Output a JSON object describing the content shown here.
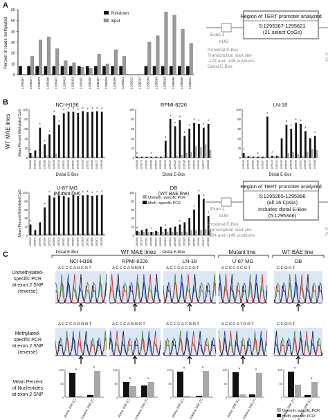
{
  "panels": {
    "A": {
      "letter": "A",
      "legend": [
        "Pull-down",
        "Input"
      ],
      "ylabel": "Percent of reads methylated",
      "ticks": [
        0,
        10,
        20,
        30,
        40,
        50,
        60
      ],
      "region_title": "Region of TERT promoter analyzed",
      "region_coords": "5:1295367-1295621",
      "region_cpgs": "(21 select CpGs)",
      "exon": "Exon 1",
      "aug": "AUG",
      "prox": "Proximal E-Box",
      "tss": "Transcription start site",
      "pos": "-124 and -146 positions",
      "distal": "Distal E-Box",
      "cg1": "cg11625005",
      "cg2": "(5:1295737)"
    },
    "B": {
      "letter": "B",
      "side_label": "WT MAE lines",
      "ylabel": "Mean Percent Methylated CpG",
      "ylabel2": "Mean Percent Methylated CpG",
      "charts": [
        {
          "title": "NCI-H196",
          "xlabel": "Distal E-Box"
        },
        {
          "title": "RPMI-8226",
          "xlabel": "Distal E-Box"
        },
        {
          "title": "LN-18",
          "xlabel": "Distal E-Box"
        },
        {
          "title": "U-87 MG",
          "subtitle": "(Mutant line)",
          "xlabel": "Distal E-Box"
        },
        {
          "title": "DB",
          "subtitle": "(WT BAE line)",
          "xlabel": "Distal E-Box"
        }
      ],
      "legend": [
        "Unmeth.-specific PCR",
        "Meth.-specific PCR"
      ],
      "region_title": "Region of TERT promoter analyzed",
      "region_coords": "5:1295265-1295396",
      "region_cpgs": "(all 16 CpGs)",
      "includes": "Includes distal E-Box",
      "includes2": "(5:1295346)",
      "exon": "Exon 1",
      "aug": "AUG",
      "prox": "Proximal E-Box",
      "tss": "Transcription start site",
      "pos": "-124 and -146 positions",
      "cg1": "cg11625005",
      "cg2": "(5:1295737)"
    },
    "C": {
      "letter": "C",
      "group_wt": "WT MAE lines",
      "group_mut": "Mutant line",
      "group_bae": "WT BAE line",
      "cells": [
        "NCI-H196",
        "RPMI-8226",
        "LN-18",
        "U-87 MG",
        "DB"
      ],
      "row1": [
        "Unmethylated-",
        "specific PCR",
        "at exon 2 SNP",
        "(reverse)"
      ],
      "row2": [
        "Methylated-",
        "specific PCR",
        "at exon 2 SNP",
        "(reverse)"
      ],
      "row3": [
        "Mean Percent",
        "of Nucleotides",
        "at exon 2 SNP"
      ],
      "xlabels_std": [
        "Active SNP (C)",
        "Inactive SNP (T)"
      ],
      "xlabels_db": [
        "More active SNP (T)",
        "Less active SNP (C)"
      ],
      "legend": [
        "Unmeth.-specific PCR",
        "Meth.-specific PCR"
      ],
      "seqs": [
        "ACCCAGCGT",
        "ACCCANNNT",
        "ACCCACCGT",
        "ACCCACGT",
        "CCGGT"
      ],
      "seqs2": [
        "ACCCAGGGT",
        "ACCCANGGT",
        "ACCCACGGT",
        "ACCCATGGT",
        "CCGGT"
      ]
    }
  },
  "chart_data": [
    {
      "type": "bar",
      "title": "",
      "ylabel": "Percent of reads methylated",
      "ylim": [
        0,
        60
      ],
      "categories": [
        "1295367",
        "1295377",
        "1295379",
        "1295396",
        "1295407",
        "1295413",
        "1295424",
        "1295432",
        "1295445",
        "1295447",
        "1295469",
        "1295499",
        "1295511",
        "1295522",
        "1295537",
        "1295549",
        "1295569",
        "1295593",
        "1295596",
        "1295608",
        "1295621"
      ],
      "series": [
        {
          "name": "Pull-down",
          "values": [
            8,
            8,
            8,
            8,
            8,
            8,
            8,
            8,
            8,
            8,
            8,
            8,
            8,
            0,
            0,
            8,
            8,
            8,
            8,
            8,
            8
          ]
        },
        {
          "name": "Input",
          "values": [
            0,
            17,
            32,
            35,
            24,
            13,
            11,
            7,
            6,
            19,
            10,
            23,
            17,
            0,
            0,
            30,
            36,
            58,
            55,
            42,
            29
          ]
        }
      ]
    },
    {
      "type": "bar",
      "title": "NCI-H196",
      "xlabel": "Distal E-Box",
      "ylim": [
        0,
        100
      ],
      "series": [
        {
          "name": "Unmeth.-specific PCR",
          "values": [
            3,
            2,
            2,
            5,
            2,
            8,
            2,
            3,
            2,
            2,
            2,
            2,
            2,
            2,
            2,
            2
          ]
        },
        {
          "name": "Meth.-specific PCR",
          "values": [
            10,
            15,
            62,
            28,
            48,
            88,
            68,
            92,
            95,
            95,
            93,
            96,
            94,
            95,
            96,
            95
          ]
        }
      ]
    },
    {
      "type": "bar",
      "title": "RPMI-8226",
      "xlabel": "Distal E-Box",
      "ylim": [
        0,
        100
      ],
      "series": [
        {
          "name": "Unmeth.-specific PCR",
          "values": [
            2,
            2,
            2,
            2,
            2,
            2,
            3,
            2,
            4,
            6,
            10,
            12,
            24,
            22,
            28,
            16
          ]
        },
        {
          "name": "Meth.-specific PCR",
          "values": [
            2,
            2,
            2,
            2,
            2,
            2,
            35,
            80,
            65,
            78,
            45,
            60,
            72,
            70,
            62,
            70
          ]
        }
      ]
    },
    {
      "type": "bar",
      "title": "LN-18",
      "xlabel": "Distal E-Box",
      "ylim": [
        0,
        100
      ],
      "series": [
        {
          "name": "Unmeth.-specific PCR",
          "values": [
            4,
            3,
            2,
            2,
            2,
            2,
            3,
            3,
            3,
            10,
            12,
            8,
            4,
            12,
            18,
            16
          ]
        },
        {
          "name": "Meth.-specific PCR",
          "values": [
            10,
            3,
            2,
            2,
            2,
            85,
            4,
            4,
            40,
            68,
            60,
            72,
            70,
            55,
            40,
            45
          ]
        }
      ]
    },
    {
      "type": "bar",
      "title": "U-87 MG",
      "xlabel": "Distal E-Box",
      "ylim": [
        0,
        100
      ],
      "series": [
        {
          "name": "Unmeth.-specific PCR",
          "values": [
            2,
            2,
            2,
            4,
            4,
            4,
            4,
            4,
            4,
            4,
            4,
            4,
            4,
            4,
            4,
            4
          ]
        },
        {
          "name": "Meth.-specific PCR",
          "values": [
            25,
            12,
            30,
            65,
            93,
            88,
            93,
            92,
            88,
            94,
            92,
            93,
            94,
            92,
            93,
            94
          ]
        }
      ]
    },
    {
      "type": "bar",
      "title": "DB",
      "xlabel": "Distal E-Box",
      "ylim": [
        0,
        100
      ],
      "series": [
        {
          "name": "Unmeth.-specific PCR",
          "values": [
            8,
            8,
            8,
            8,
            8,
            8,
            8,
            8,
            8,
            8,
            8,
            12,
            12,
            12,
            14,
            14
          ]
        },
        {
          "name": "Meth.-specific PCR",
          "values": [
            10,
            12,
            15,
            8,
            10,
            20,
            15,
            18,
            20,
            25,
            30,
            40,
            60,
            95,
            85,
            45
          ]
        }
      ]
    },
    {
      "type": "bar",
      "title": "NCI-H196",
      "categories": [
        "Active SNP (C)",
        "Inactive SNP (T)"
      ],
      "ylim": [
        0,
        100
      ],
      "series": [
        {
          "name": "Unmeth.-specific PCR",
          "values": [
            5,
            95
          ]
        },
        {
          "name": "Meth.-specific PCR",
          "values": [
            88,
            8
          ]
        }
      ]
    },
    {
      "type": "bar",
      "title": "RPMI-8226",
      "categories": [
        "Active SNP (C)",
        "Inactive SNP (T)"
      ],
      "ylim": [
        0,
        100
      ],
      "series": [
        {
          "name": "Unmeth.-specific PCR",
          "values": [
            40,
            55
          ]
        },
        {
          "name": "Meth.-specific PCR",
          "values": [
            55,
            42
          ]
        }
      ]
    },
    {
      "type": "bar",
      "title": "LN-18",
      "categories": [
        "Active SNP (C)",
        "Inactive SNP (T)"
      ],
      "ylim": [
        0,
        100
      ],
      "series": [
        {
          "name": "Unmeth.-specific PCR",
          "values": [
            5,
            95
          ]
        },
        {
          "name": "Meth.-specific PCR",
          "values": [
            92,
            5
          ]
        }
      ]
    },
    {
      "type": "bar",
      "title": "U-87 MG",
      "categories": [
        "Active SNP (C)",
        "Inactive SNP (T)"
      ],
      "ylim": [
        0,
        100
      ],
      "series": [
        {
          "name": "Unmeth.-specific PCR",
          "values": [
            10,
            88
          ]
        },
        {
          "name": "Meth.-specific PCR",
          "values": [
            90,
            10
          ]
        }
      ]
    },
    {
      "type": "bar",
      "title": "DB",
      "categories": [
        "More active SNP (T)",
        "Less active SNP (C)"
      ],
      "ylim": [
        0,
        100
      ],
      "series": [
        {
          "name": "Unmeth.-specific PCR",
          "values": [
            45,
            55
          ]
        },
        {
          "name": "Meth.-specific PCR",
          "values": [
            92,
            8
          ]
        }
      ]
    }
  ]
}
